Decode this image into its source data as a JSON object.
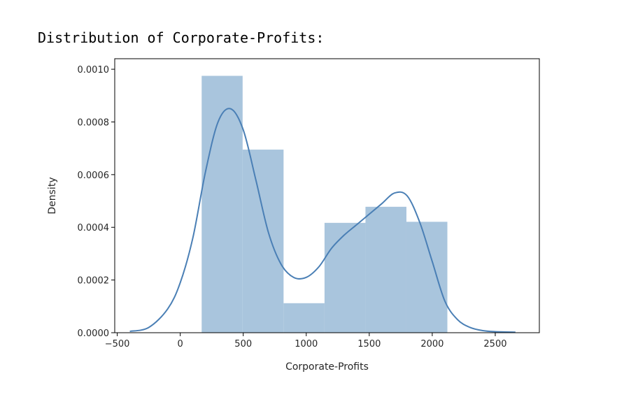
{
  "heading": "Distribution of Corporate-Profits:",
  "colors": {
    "bar_fill": "#a9c5dd",
    "kde_line": "#4a7fb5",
    "axis": "#000000",
    "text": "#262626"
  },
  "chart_data": {
    "type": "histogram+kde",
    "xlabel": "Corporate-Profits",
    "ylabel": "Density",
    "xlim": [
      -520,
      2850
    ],
    "ylim": [
      0,
      0.00104
    ],
    "x_ticks": [
      -500,
      0,
      500,
      1000,
      1500,
      2000,
      2500
    ],
    "x_tick_labels": [
      "−500",
      "0",
      "500",
      "1000",
      "1500",
      "2000",
      "2500"
    ],
    "y_ticks": [
      0,
      0.0002,
      0.0004,
      0.0006,
      0.0008,
      0.001
    ],
    "y_tick_labels": [
      "0.0000",
      "0.0002",
      "0.0004",
      "0.0006",
      "0.0008",
      "0.0010"
    ],
    "histogram": [
      {
        "x0": 170,
        "x1": 495,
        "density": 0.000975
      },
      {
        "x0": 495,
        "x1": 820,
        "density": 0.000695
      },
      {
        "x0": 820,
        "x1": 1145,
        "density": 0.000112
      },
      {
        "x0": 1145,
        "x1": 1470,
        "density": 0.000417
      },
      {
        "x0": 1470,
        "x1": 1795,
        "density": 0.000478
      },
      {
        "x0": 1795,
        "x1": 2120,
        "density": 0.000421
      }
    ],
    "kde": {
      "x": [
        -400,
        -250,
        -100,
        0,
        100,
        200,
        300,
        400,
        500,
        600,
        700,
        800,
        900,
        1000,
        1100,
        1200,
        1300,
        1400,
        1500,
        1600,
        1700,
        1800,
        1900,
        2000,
        2100,
        2200,
        2300,
        2400,
        2500,
        2660
      ],
      "y": [
        5e-06,
        2e-05,
        9e-05,
        0.00019,
        0.00036,
        0.00061,
        0.0008,
        0.00085,
        0.00077,
        0.00058,
        0.00038,
        0.00026,
        0.00021,
        0.00021,
        0.00025,
        0.00032,
        0.00037,
        0.00041,
        0.00045,
        0.00049,
        0.00053,
        0.00052,
        0.00042,
        0.00027,
        0.00012,
        5e-05,
        2e-05,
        8e-06,
        4e-06,
        2e-06
      ]
    }
  }
}
